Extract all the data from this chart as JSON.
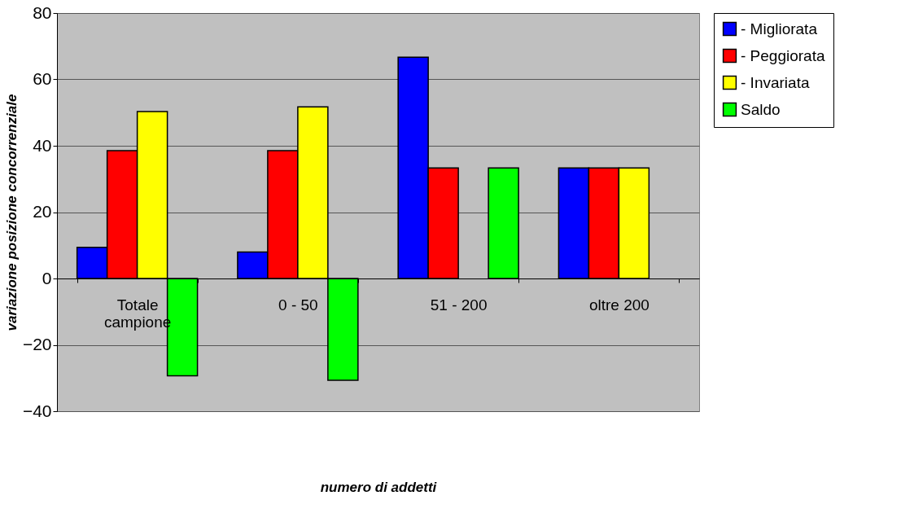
{
  "chart_data": {
    "type": "bar",
    "xlabel": "numero di addetti",
    "ylabel": "variazione posizione concorrenziale",
    "categories": [
      "Totale campione",
      "0 - 50",
      "51 - 200",
      "oltre 200"
    ],
    "series": [
      {
        "name": "- Migliorata",
        "color": "#0000ff",
        "values": [
          9.4,
          8.0,
          66.7,
          33.3
        ]
      },
      {
        "name": "- Peggiorata",
        "color": "#ff0000",
        "values": [
          38.5,
          38.5,
          33.3,
          33.3
        ]
      },
      {
        "name": "- Invariata",
        "color": "#ffff00",
        "values": [
          50.3,
          51.7,
          null,
          33.3
        ]
      },
      {
        "name": "Saldo",
        "color": "#00ff00",
        "values": [
          -29.3,
          -30.7,
          33.3,
          null
        ]
      }
    ],
    "ylim": [
      -40,
      80
    ],
    "yticks": [
      -40,
      -20,
      0,
      20,
      40,
      60,
      80
    ],
    "grid": "y",
    "legend": "right"
  }
}
